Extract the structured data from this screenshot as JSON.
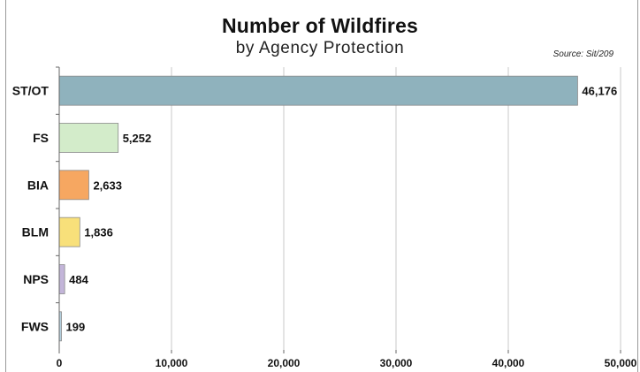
{
  "chart_data": {
    "type": "bar",
    "orientation": "horizontal",
    "title": "Number of Wildfires",
    "subtitle": "by Agency Protection",
    "source": "Source: Sit/209",
    "categories": [
      "ST/OT",
      "FS",
      "BIA",
      "BLM",
      "NPS",
      "FWS"
    ],
    "values": [
      46176,
      5252,
      2633,
      1836,
      484,
      199
    ],
    "data_labels": [
      "46,176",
      "5,252",
      "2,633",
      "1,836",
      "484",
      "199"
    ],
    "colors": [
      "#8fb2bd",
      "#d3ecca",
      "#f6a761",
      "#f8e07a",
      "#c3b5d9",
      "#b4d0df"
    ],
    "xlim": [
      0,
      50000
    ],
    "x_ticks": [
      0,
      10000,
      20000,
      30000,
      40000,
      50000
    ],
    "x_tick_labels": [
      "0",
      "10,000",
      "20,000",
      "30,000",
      "40,000",
      "50,000"
    ],
    "grid": "vertical",
    "legend": "none"
  }
}
